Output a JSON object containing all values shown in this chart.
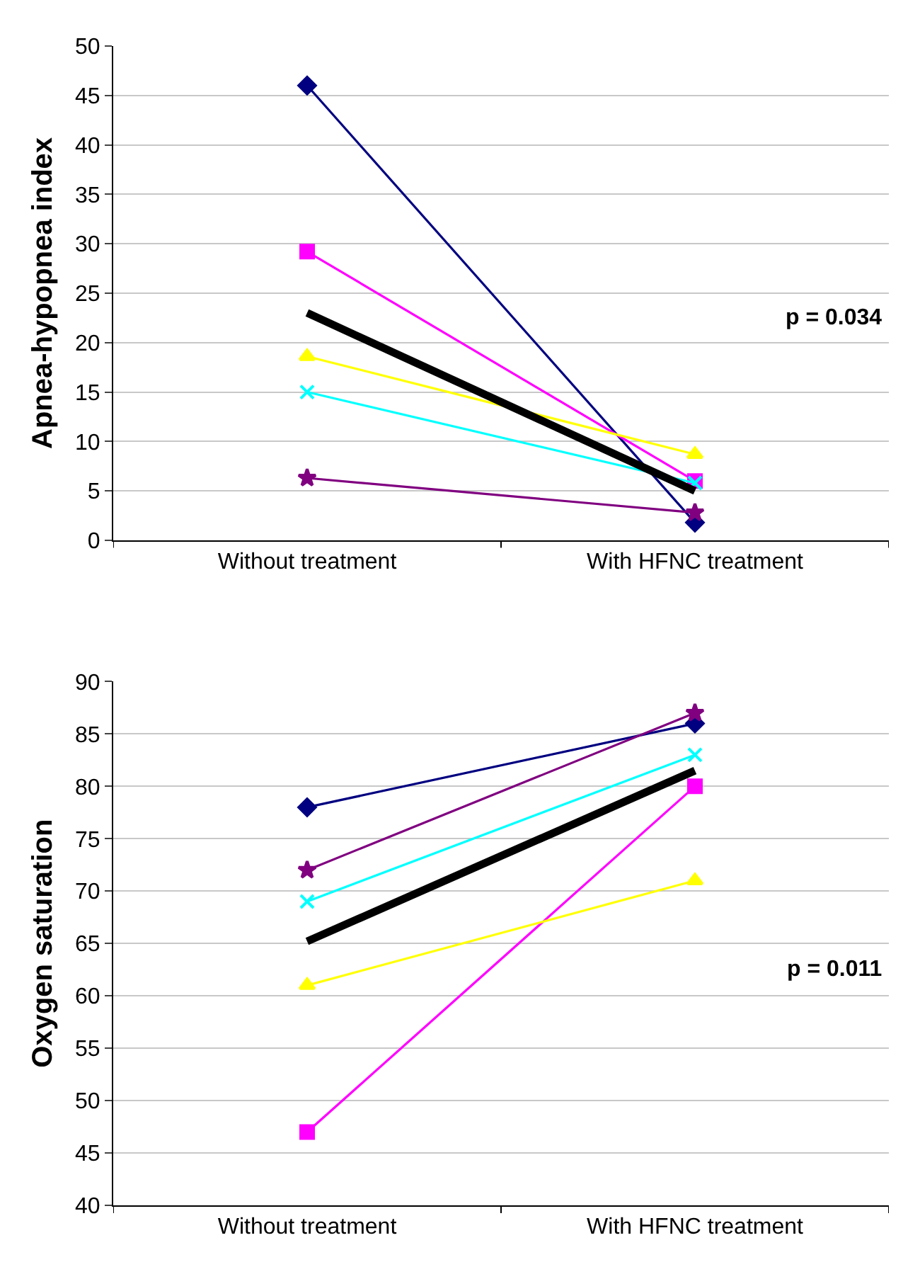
{
  "chart_data": [
    {
      "type": "line",
      "ylabel": "Apnea-hypopnea index",
      "categories": [
        "Without treatment",
        "With HFNC treatment"
      ],
      "ylim": [
        0,
        50
      ],
      "yticks": [
        0,
        5,
        10,
        15,
        20,
        25,
        30,
        35,
        40,
        45,
        50
      ],
      "grid": "y",
      "annotations": [
        "p = 0.034"
      ],
      "series": [
        {
          "color": "#000080",
          "marker": "diamond",
          "values": [
            46,
            1.8
          ]
        },
        {
          "color": "#ff00ff",
          "marker": "square",
          "values": [
            29.2,
            6
          ]
        },
        {
          "color": "#ffff00",
          "marker": "triangle",
          "values": [
            18.6,
            8.7
          ]
        },
        {
          "color": "#00ffff",
          "marker": "cross",
          "values": [
            15,
            5.8
          ]
        },
        {
          "color": "#800080",
          "marker": "star",
          "values": [
            6.3,
            2.8
          ]
        },
        {
          "color": "#000000",
          "marker": "none",
          "values": [
            23,
            5
          ]
        }
      ]
    },
    {
      "type": "line",
      "ylabel": "Oxygen saturation",
      "categories": [
        "Without treatment",
        "With HFNC treatment"
      ],
      "ylim": [
        40,
        90
      ],
      "yticks": [
        40,
        45,
        50,
        55,
        60,
        65,
        70,
        75,
        80,
        85,
        90
      ],
      "grid": "y",
      "annotations": [
        "p = 0.011"
      ],
      "series": [
        {
          "color": "#000080",
          "marker": "diamond",
          "values": [
            78,
            86
          ]
        },
        {
          "color": "#ff00ff",
          "marker": "square",
          "values": [
            47,
            80
          ]
        },
        {
          "color": "#ffff00",
          "marker": "triangle",
          "values": [
            61,
            71
          ]
        },
        {
          "color": "#00ffff",
          "marker": "cross",
          "values": [
            69,
            83
          ]
        },
        {
          "color": "#800080",
          "marker": "star",
          "values": [
            72,
            87
          ]
        },
        {
          "color": "#000000",
          "marker": "none",
          "values": [
            65.2,
            81.5
          ]
        }
      ]
    }
  ]
}
